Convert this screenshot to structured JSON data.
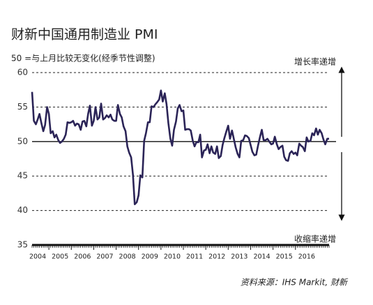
{
  "chart_data": {
    "type": "line",
    "title": "财新中国通用制造业 PMI",
    "subtitle": "50 =与上月比较无变化(经季节性调整)",
    "annotations": {
      "top": "增长率递增",
      "bottom": "收缩率递增"
    },
    "source": "资料来源：IHS Markit, 财新",
    "color": "#2b2457",
    "baseline": 50,
    "ylim": [
      35,
      60
    ],
    "yticks": [
      35,
      40,
      45,
      50,
      55,
      60
    ],
    "grid": true,
    "xlim": [
      2004.2,
      2017.6
    ],
    "xticks": [
      2004,
      2005,
      2006,
      2007,
      2008,
      2009,
      2010,
      2011,
      2012,
      2013,
      2014,
      2015,
      2016
    ],
    "x": [
      2004.25,
      2004.33,
      2004.42,
      2004.5,
      2004.58,
      2004.67,
      2004.75,
      2004.83,
      2004.92,
      2005,
      2005.08,
      2005.17,
      2005.25,
      2005.33,
      2005.42,
      2005.5,
      2005.58,
      2005.67,
      2005.75,
      2005.83,
      2005.92,
      2006,
      2006.08,
      2006.17,
      2006.25,
      2006.33,
      2006.42,
      2006.5,
      2006.58,
      2006.67,
      2006.75,
      2006.83,
      2006.92,
      2007,
      2007.08,
      2007.17,
      2007.25,
      2007.33,
      2007.42,
      2007.5,
      2007.58,
      2007.67,
      2007.75,
      2007.83,
      2007.92,
      2008,
      2008.08,
      2008.17,
      2008.25,
      2008.33,
      2008.42,
      2008.5,
      2008.58,
      2008.67,
      2008.75,
      2008.83,
      2008.92,
      2009,
      2009.08,
      2009.17,
      2009.25,
      2009.33,
      2009.42,
      2009.5,
      2009.58,
      2009.67,
      2009.75,
      2009.83,
      2009.92,
      2010,
      2010.08,
      2010.17,
      2010.25,
      2010.33,
      2010.42,
      2010.5,
      2010.58,
      2010.67,
      2010.75,
      2010.83,
      2010.92,
      2011,
      2011.08,
      2011.17,
      2011.25,
      2011.33,
      2011.42,
      2011.5,
      2011.58,
      2011.67,
      2011.75,
      2011.83,
      2011.92,
      2012,
      2012.08,
      2012.17,
      2012.25,
      2012.33,
      2012.42,
      2012.5,
      2012.58,
      2012.67,
      2012.75,
      2012.83,
      2012.92,
      2013,
      2013.08,
      2013.17,
      2013.25,
      2013.33,
      2013.42,
      2013.5,
      2013.58,
      2013.67,
      2013.75,
      2013.83,
      2013.92,
      2014,
      2014.08,
      2014.17,
      2014.25,
      2014.33,
      2014.42,
      2014.5,
      2014.58,
      2014.67,
      2014.75,
      2014.83,
      2014.92,
      2015,
      2015.08,
      2015.17,
      2015.25,
      2015.33,
      2015.42,
      2015.5,
      2015.58,
      2015.67,
      2015.75,
      2015.83,
      2015.92,
      2016,
      2016.08,
      2016.17,
      2016.25,
      2016.33,
      2016.42,
      2016.5,
      2016.58,
      2016.67,
      2016.75,
      2016.83,
      2016.92,
      2017,
      2017.08,
      2017.17,
      2017.25,
      2017.33,
      2017.42,
      2017.5
    ],
    "values": [
      57.2,
      53.0,
      52.5,
      53.2,
      54.0,
      52.6,
      51.5,
      52.4,
      55.0,
      54.0,
      51.2,
      51.5,
      50.6,
      51.0,
      50.2,
      49.8,
      50.0,
      50.4,
      51.0,
      52.8,
      52.7,
      52.8,
      53.0,
      52.3,
      52.6,
      52.5,
      51.7,
      52.9,
      53.0,
      52.2,
      54.0,
      55.2,
      52.3,
      53.0,
      55.0,
      53.2,
      53.5,
      55.5,
      53.2,
      53.4,
      53.8,
      53.5,
      53.9,
      53.2,
      53.0,
      53.0,
      55.3,
      54.0,
      53.5,
      52.2,
      51.5,
      49.3,
      48.4,
      47.7,
      45.2,
      40.9,
      41.2,
      42.2,
      45.1,
      44.8,
      50.1,
      51.2,
      52.8,
      52.8,
      55.1,
      55.0,
      55.4,
      55.7,
      56.1,
      57.4,
      55.8,
      57.0,
      55.4,
      52.7,
      50.4,
      49.4,
      51.7,
      52.9,
      54.8,
      55.3,
      54.4,
      54.5,
      51.7,
      51.8,
      51.8,
      51.6,
      50.1,
      49.3,
      49.9,
      49.9,
      51.0,
      47.7,
      48.7,
      48.8,
      49.6,
      48.3,
      49.3,
      48.4,
      48.2,
      49.3,
      47.6,
      47.9,
      49.5,
      50.5,
      51.5,
      52.3,
      50.4,
      51.6,
      50.4,
      49.2,
      48.2,
      47.7,
      50.1,
      50.2,
      50.9,
      50.8,
      50.5,
      49.5,
      48.5,
      48.0,
      48.1,
      49.4,
      50.7,
      51.7,
      50.2,
      50.2,
      50.4,
      50.0,
      49.6,
      49.7,
      50.7,
      49.6,
      48.9,
      49.2,
      49.4,
      47.8,
      47.3,
      47.2,
      48.3,
      48.6,
      48.2,
      48.4,
      48.0,
      49.7,
      49.4,
      49.2,
      48.6,
      50.6,
      50.0,
      50.1,
      51.2,
      50.9,
      51.9,
      51.0,
      51.7,
      51.2,
      50.3,
      49.6,
      50.4,
      50.4
    ]
  }
}
